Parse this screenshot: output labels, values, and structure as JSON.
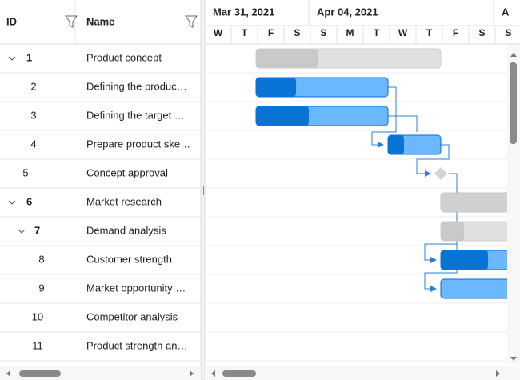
{
  "header": {
    "id": "ID",
    "name": "Name"
  },
  "timeline": {
    "weeks": [
      "Mar 31, 2021",
      "Apr 04, 2021",
      "A"
    ],
    "days": [
      "W",
      "T",
      "F",
      "S",
      "S",
      "M",
      "T",
      "W",
      "T",
      "F",
      "S",
      "S"
    ]
  },
  "rows": [
    {
      "id": "1",
      "name": "Product concept"
    },
    {
      "id": "2",
      "name": "Defining the produc…"
    },
    {
      "id": "3",
      "name": "Defining the target …"
    },
    {
      "id": "4",
      "name": "Prepare product ske…"
    },
    {
      "id": "5",
      "name": "Concept approval"
    },
    {
      "id": "6",
      "name": "Market research"
    },
    {
      "id": "7",
      "name": "Demand analysis"
    },
    {
      "id": "8",
      "name": "Customer strength"
    },
    {
      "id": "9",
      "name": "Market opportunity …"
    },
    {
      "id": "10",
      "name": "Competitor analysis"
    },
    {
      "id": "11",
      "name": "Product strength an…"
    }
  ]
}
